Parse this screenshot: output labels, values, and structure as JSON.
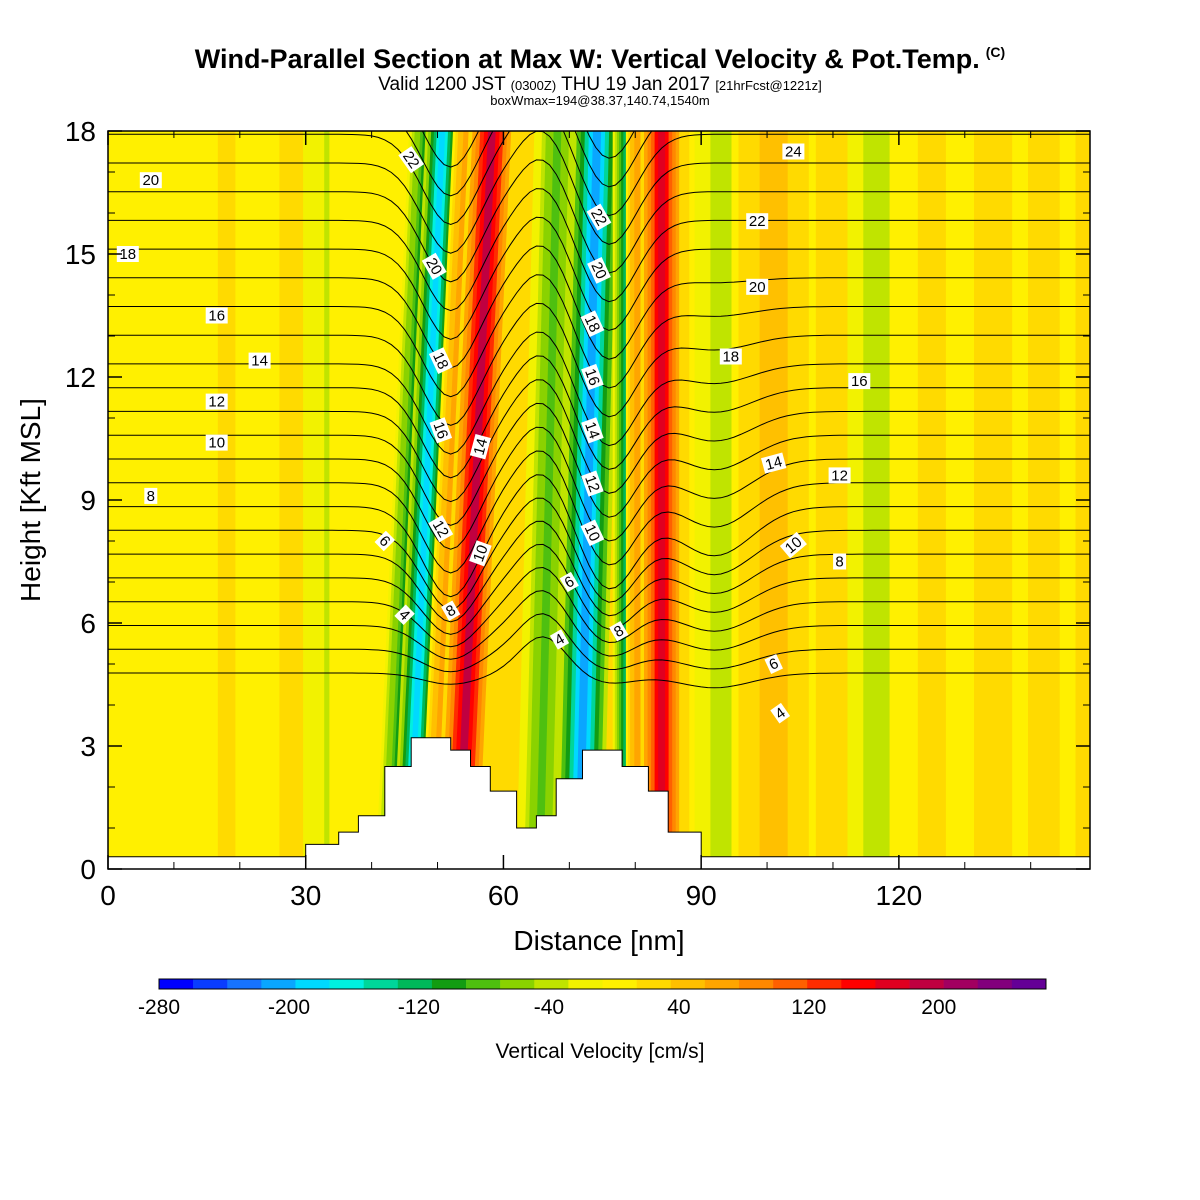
{
  "title": {
    "main": "Wind-Parallel Section at Max W: Vertical Velocity & Pot.Temp.",
    "mark": "(C)",
    "valid_prefix": "Valid 1200 JST",
    "valid_utc": "(0300Z)",
    "valid_date": "THU 19 Jan 2017",
    "forecast": "[21hrFcst@1221z]",
    "box_info": "boxWmax=194@38.37,140.74,1540m"
  },
  "chart_data": {
    "type": "heatmap",
    "xlabel": "Distance [nm]",
    "ylabel": "Height [Kft MSL]",
    "xlim": [
      0,
      149
    ],
    "ylim": [
      0,
      18
    ],
    "xticks": [
      0,
      30,
      60,
      90,
      120
    ],
    "yticks": [
      0,
      3,
      6,
      9,
      12,
      15,
      18
    ],
    "colorbar": {
      "label": "Vertical Velocity [cm/s]",
      "tick_labels": [
        "-280",
        "-200",
        "-120",
        "-40",
        "40",
        "120",
        "200"
      ],
      "tick_values": [
        -280,
        -200,
        -120,
        -40,
        40,
        120,
        200
      ],
      "colors": [
        "#0000ff",
        "#0a3cff",
        "#1673ff",
        "#0aa6ff",
        "#00d9ff",
        "#00f0e0",
        "#00d69a",
        "#00b85a",
        "#129c12",
        "#4ec010",
        "#8ad200",
        "#c0e400",
        "#f2f200",
        "#fff000",
        "#ffda00",
        "#ffc000",
        "#ffa500",
        "#ff8800",
        "#ff6000",
        "#ff2c00",
        "#ff0000",
        "#e00020",
        "#c00040",
        "#a20060",
        "#82007c",
        "#640096"
      ]
    },
    "velocity_bands": [
      {
        "x": 5,
        "xs": 4,
        "value": -5
      },
      {
        "x": 18,
        "xs": 5,
        "value": 15
      },
      {
        "x": 36,
        "xs": 4,
        "value": -55
      },
      {
        "x": 40,
        "xs": 4,
        "value": 10
      },
      {
        "x": 46,
        "xs": 1.6,
        "value": -100,
        "slope": 0.28
      },
      {
        "x": 48.5,
        "xs": 1.6,
        "value": -195,
        "slope": 0.28
      },
      {
        "x": 52.5,
        "xs": 1.5,
        "value": 70,
        "slope": 0.28
      },
      {
        "x": 56,
        "xs": 2.2,
        "value": 190,
        "slope": 0.28
      },
      {
        "x": 67,
        "xs": 2.2,
        "value": -75,
        "slope": 0.15
      },
      {
        "x": 73,
        "xs": 2.3,
        "value": -215,
        "slope": 0.15
      },
      {
        "x": 78.5,
        "xs": 1.2,
        "value": -130
      },
      {
        "x": 80.5,
        "xs": 1.2,
        "value": 70
      },
      {
        "x": 84,
        "xs": 2,
        "value": 175
      },
      {
        "x": 93,
        "xs": 3,
        "value": -35
      },
      {
        "x": 101,
        "xs": 4,
        "value": 45
      },
      {
        "x": 117,
        "xs": 3,
        "value": -45
      },
      {
        "x": 125,
        "xs": 4,
        "value": 20
      },
      {
        "x": 142,
        "xs": 3,
        "value": 25
      }
    ],
    "isentropes": {
      "levels": [
        1,
        2,
        3,
        4,
        5,
        6,
        7,
        8,
        9,
        10,
        11,
        12,
        13,
        14,
        15,
        16,
        17,
        18,
        19,
        20,
        21,
        22,
        23,
        24
      ],
      "labels": [
        {
          "text": "20",
          "x": 6.5,
          "y": 16.8,
          "angle": 0
        },
        {
          "text": "18",
          "x": 3,
          "y": 15.0,
          "angle": 0
        },
        {
          "text": "16",
          "x": 16.5,
          "y": 13.5,
          "angle": 0
        },
        {
          "text": "14",
          "x": 23,
          "y": 12.4,
          "angle": 0
        },
        {
          "text": "12",
          "x": 16.5,
          "y": 11.4,
          "angle": 0
        },
        {
          "text": "10",
          "x": 16.5,
          "y": 10.4,
          "angle": 0
        },
        {
          "text": "8",
          "x": 6.5,
          "y": 9.1,
          "angle": 0
        },
        {
          "text": "22",
          "x": 46,
          "y": 17.3,
          "angle": 55
        },
        {
          "text": "20",
          "x": 49.5,
          "y": 14.7,
          "angle": 60
        },
        {
          "text": "18",
          "x": 50.5,
          "y": 12.4,
          "angle": 65
        },
        {
          "text": "16",
          "x": 50.5,
          "y": 10.7,
          "angle": 70
        },
        {
          "text": "12",
          "x": 50.5,
          "y": 8.3,
          "angle": 60
        },
        {
          "text": "6",
          "x": 42,
          "y": 8.0,
          "angle": 45
        },
        {
          "text": "4",
          "x": 45,
          "y": 6.2,
          "angle": 45
        },
        {
          "text": "8",
          "x": 52,
          "y": 6.3,
          "angle": -30
        },
        {
          "text": "10",
          "x": 56.5,
          "y": 7.7,
          "angle": -70
        },
        {
          "text": "14",
          "x": 56.5,
          "y": 10.3,
          "angle": -75
        },
        {
          "text": "22",
          "x": 74.5,
          "y": 15.9,
          "angle": 60
        },
        {
          "text": "20",
          "x": 74.5,
          "y": 14.6,
          "angle": 65
        },
        {
          "text": "18",
          "x": 73.5,
          "y": 13.3,
          "angle": 65
        },
        {
          "text": "16",
          "x": 73.5,
          "y": 12.0,
          "angle": 70
        },
        {
          "text": "14",
          "x": 73.5,
          "y": 10.7,
          "angle": 70
        },
        {
          "text": "12",
          "x": 73.5,
          "y": 9.4,
          "angle": 70
        },
        {
          "text": "10",
          "x": 73.5,
          "y": 8.2,
          "angle": 65
        },
        {
          "text": "6",
          "x": 70,
          "y": 7.0,
          "angle": -30
        },
        {
          "text": "4",
          "x": 68.5,
          "y": 5.6,
          "angle": -30
        },
        {
          "text": "8",
          "x": 77.5,
          "y": 5.8,
          "angle": -30
        },
        {
          "text": "24",
          "x": 104,
          "y": 17.5,
          "angle": 0
        },
        {
          "text": "22",
          "x": 98.5,
          "y": 15.8,
          "angle": 0
        },
        {
          "text": "20",
          "x": 98.5,
          "y": 14.2,
          "angle": 0
        },
        {
          "text": "18",
          "x": 94.5,
          "y": 12.5,
          "angle": 0
        },
        {
          "text": "16",
          "x": 114,
          "y": 11.9,
          "angle": 0
        },
        {
          "text": "14",
          "x": 101,
          "y": 9.9,
          "angle": -15
        },
        {
          "text": "12",
          "x": 111,
          "y": 9.6,
          "angle": 0
        },
        {
          "text": "10",
          "x": 104,
          "y": 7.9,
          "angle": -40
        },
        {
          "text": "8",
          "x": 111,
          "y": 7.5,
          "angle": 0
        },
        {
          "text": "6",
          "x": 101,
          "y": 5.0,
          "angle": -25
        },
        {
          "text": "4",
          "x": 102,
          "y": 3.8,
          "angle": -35
        }
      ]
    },
    "terrain_kft": [
      {
        "x": 0,
        "h": 0.3
      },
      {
        "x": 30,
        "h": 0.3
      },
      {
        "x": 30,
        "h": 0.6
      },
      {
        "x": 35,
        "h": 0.6
      },
      {
        "x": 35,
        "h": 0.9
      },
      {
        "x": 38,
        "h": 0.9
      },
      {
        "x": 38,
        "h": 1.3
      },
      {
        "x": 42,
        "h": 1.3
      },
      {
        "x": 42,
        "h": 2.5
      },
      {
        "x": 46,
        "h": 2.5
      },
      {
        "x": 46,
        "h": 3.2
      },
      {
        "x": 52,
        "h": 3.2
      },
      {
        "x": 52,
        "h": 2.9
      },
      {
        "x": 55,
        "h": 2.9
      },
      {
        "x": 55,
        "h": 2.5
      },
      {
        "x": 58,
        "h": 2.5
      },
      {
        "x": 58,
        "h": 1.9
      },
      {
        "x": 62,
        "h": 1.9
      },
      {
        "x": 62,
        "h": 1.0
      },
      {
        "x": 65,
        "h": 1.0
      },
      {
        "x": 65,
        "h": 1.3
      },
      {
        "x": 68,
        "h": 1.3
      },
      {
        "x": 68,
        "h": 2.2
      },
      {
        "x": 72,
        "h": 2.2
      },
      {
        "x": 72,
        "h": 2.9
      },
      {
        "x": 78,
        "h": 2.9
      },
      {
        "x": 78,
        "h": 2.5
      },
      {
        "x": 82,
        "h": 2.5
      },
      {
        "x": 82,
        "h": 1.9
      },
      {
        "x": 85,
        "h": 1.9
      },
      {
        "x": 85,
        "h": 0.9
      },
      {
        "x": 90,
        "h": 0.9
      },
      {
        "x": 90,
        "h": 0.3
      },
      {
        "x": 149,
        "h": 0.3
      }
    ]
  }
}
